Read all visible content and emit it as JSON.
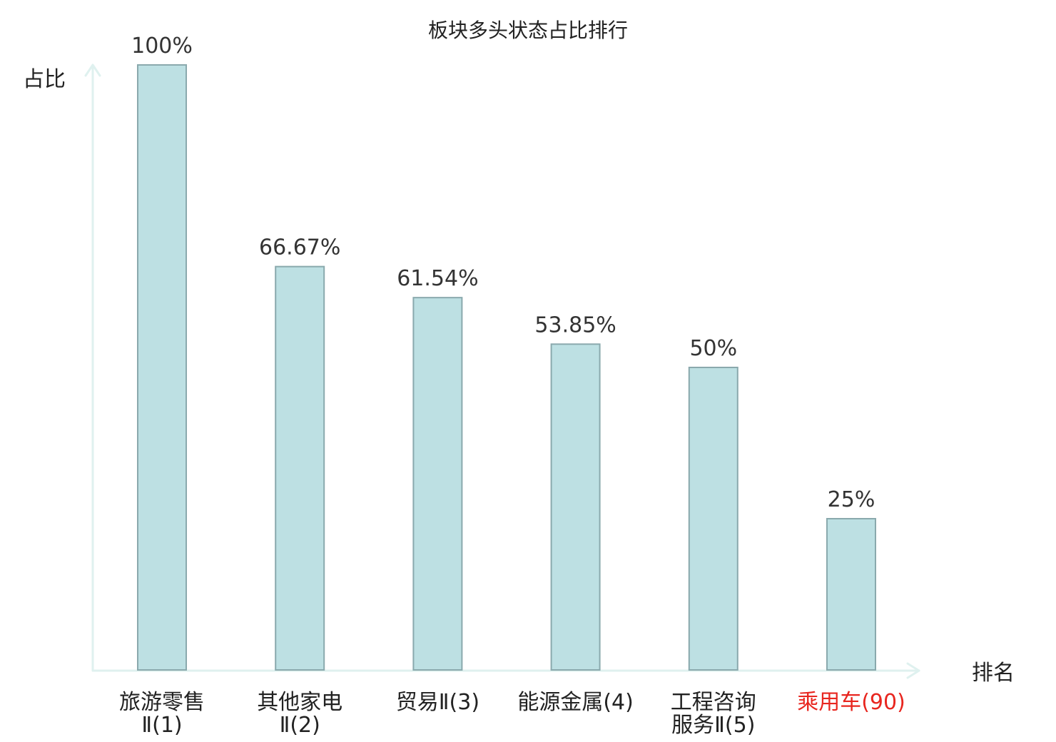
{
  "chart_data": {
    "type": "bar",
    "title": "板块多头状态占比排行",
    "xlabel": "排名",
    "ylabel": "占比",
    "ylim": [
      0,
      100
    ],
    "grid": false,
    "legend": "none",
    "categories": [
      {
        "name": "旅游零售Ⅱ",
        "rank": "(1)",
        "lines": [
          "旅游零售",
          "Ⅱ(1)"
        ],
        "highlight": false
      },
      {
        "name": "其他家电",
        "rank": "Ⅱ(2)",
        "lines": [
          "其他家电",
          "Ⅱ(2)"
        ],
        "highlight": false
      },
      {
        "name": "贸易Ⅱ",
        "rank": "(3)",
        "lines": [
          "贸易Ⅱ(3)"
        ],
        "highlight": false
      },
      {
        "name": "能源金属",
        "rank": "(4)",
        "lines": [
          "能源金属(4)"
        ],
        "highlight": false
      },
      {
        "name": "工程咨询服务Ⅱ",
        "rank": "(5)",
        "lines": [
          "工程咨询",
          "服务Ⅱ(5)"
        ],
        "highlight": false
      },
      {
        "name": "乘用车",
        "rank": "(90)",
        "lines": [
          "乘用车(90)"
        ],
        "highlight": true
      }
    ],
    "values": [
      100,
      66.67,
      61.54,
      53.85,
      50,
      25
    ],
    "value_labels": [
      "100%",
      "66.67%",
      "61.54%",
      "53.85%",
      "50%",
      "25%"
    ],
    "colors": {
      "bar_fill": "#bde0e3",
      "bar_stroke": "#8aa9ad",
      "axis": "#dff1ef",
      "text": "#222222",
      "value_text": "#333333",
      "highlight_text": "#e8261f"
    }
  }
}
